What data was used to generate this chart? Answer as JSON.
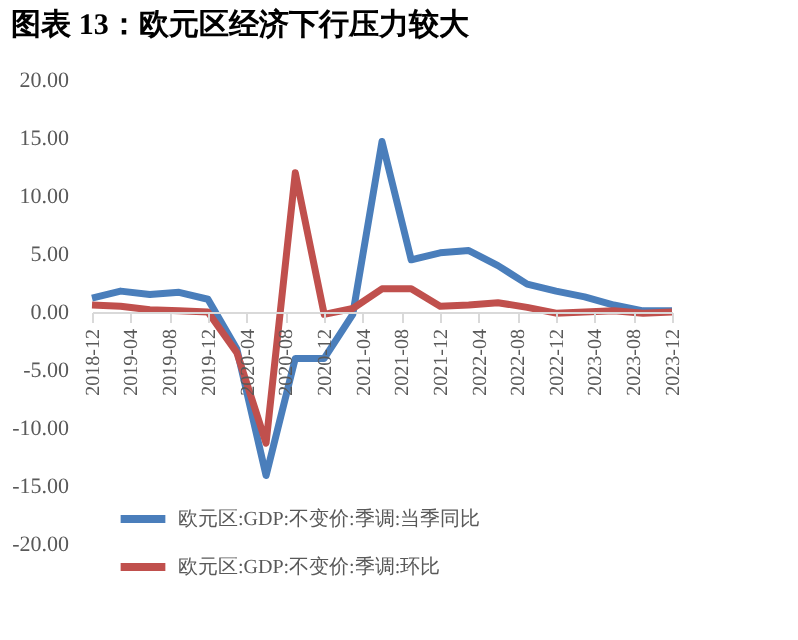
{
  "chart_data": {
    "type": "line",
    "title": "图表 13：欧元区经济下行压力较大",
    "x": [
      "2018-12",
      "2019-03",
      "2019-06",
      "2019-09",
      "2019-12",
      "2020-03",
      "2020-06",
      "2020-09",
      "2020-12",
      "2021-03",
      "2021-06",
      "2021-09",
      "2021-12",
      "2022-03",
      "2022-06",
      "2022-09",
      "2022-12",
      "2023-03",
      "2023-06",
      "2023-09",
      "2023-12"
    ],
    "series": [
      {
        "name": "欧元区:GDP:不变价:季调:当季同比",
        "color": "#4a7ebb",
        "values": [
          1.2,
          1.8,
          1.5,
          1.7,
          1.1,
          -3.2,
          -14.1,
          -4.0,
          -4.0,
          -0.2,
          14.7,
          4.5,
          5.1,
          5.3,
          4.0,
          2.4,
          1.8,
          1.3,
          0.6,
          0.1,
          0.1
        ]
      },
      {
        "name": "欧元区:GDP:不变价:季调:环比",
        "color": "#c0504d",
        "values": [
          0.6,
          0.5,
          0.2,
          0.1,
          0.0,
          -3.5,
          -11.3,
          12.0,
          -0.2,
          0.3,
          2.0,
          2.0,
          0.5,
          0.6,
          0.8,
          0.4,
          -0.1,
          0.0,
          0.1,
          -0.1,
          0.0
        ]
      }
    ],
    "xlim": [
      "2018-12",
      "2023-12"
    ],
    "xticks": [
      "2018-12",
      "2019-04",
      "2019-08",
      "2019-12",
      "2020-04",
      "2020-08",
      "2020-12",
      "2021-04",
      "2021-08",
      "2021-12",
      "2022-04",
      "2022-08",
      "2022-12",
      "2023-04",
      "2023-08",
      "2023-12"
    ],
    "ylim": [
      -20,
      20
    ],
    "yticks": [
      {
        "value": -20,
        "label": "-20.00"
      },
      {
        "value": -15,
        "label": "-15.00"
      },
      {
        "value": -10,
        "label": "-10.00"
      },
      {
        "value": -5,
        "label": "-5.00"
      },
      {
        "value": 0,
        "label": "0.00"
      },
      {
        "value": 5,
        "label": "5.00"
      },
      {
        "value": 10,
        "label": "10.00"
      },
      {
        "value": 15,
        "label": "15.00"
      },
      {
        "value": 20,
        "label": "20.00"
      }
    ],
    "grid": false,
    "legend": "bottom left",
    "marker": "none",
    "line_style": "solid"
  }
}
